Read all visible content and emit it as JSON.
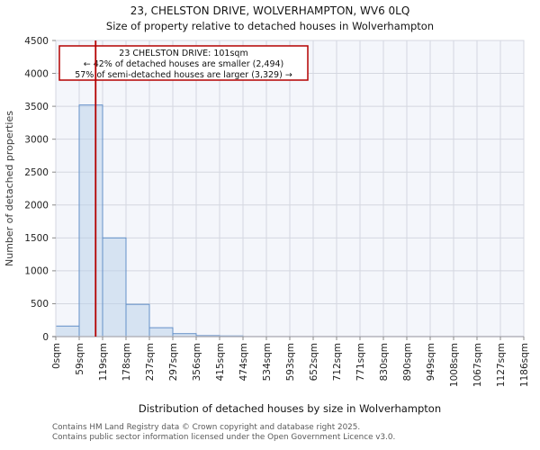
{
  "page": {
    "title": "23, CHELSTON DRIVE, WOLVERHAMPTON, WV6 0LQ",
    "subtitle": "Size of property relative to detached houses in Wolverhampton"
  },
  "chart_data": {
    "type": "bar",
    "title": "23, CHELSTON DRIVE, WOLVERHAMPTON, WV6 0LQ",
    "subtitle": "Size of property relative to detached houses in Wolverhampton",
    "xlabel": "Distribution of detached houses by size in Wolverhampton",
    "ylabel": "Number of detached properties",
    "categories": [
      "0sqm",
      "59sqm",
      "119sqm",
      "178sqm",
      "237sqm",
      "297sqm",
      "356sqm",
      "415sqm",
      "474sqm",
      "534sqm",
      "593sqm",
      "652sqm",
      "712sqm",
      "771sqm",
      "830sqm",
      "890sqm",
      "949sqm",
      "1008sqm",
      "1067sqm",
      "1127sqm",
      "1186sqm"
    ],
    "values": [
      160,
      3520,
      1500,
      490,
      135,
      45,
      15,
      10,
      0,
      0,
      0,
      0,
      0,
      0,
      0,
      0,
      0,
      0,
      0,
      0
    ],
    "ylim": [
      0,
      4500
    ],
    "yticks": [
      0,
      500,
      1000,
      1500,
      2000,
      2500,
      3000,
      3500,
      4000,
      4500
    ],
    "xlim_sqm": [
      0,
      1186
    ],
    "grid": true,
    "legend": "none",
    "marker": {
      "label": "23 CHELSTON DRIVE",
      "value_sqm": 101
    },
    "annotation": {
      "lines": [
        "23 CHELSTON DRIVE: 101sqm",
        "← 42% of detached houses are smaller (2,494)",
        "57% of semi-detached houses are larger (3,329) →"
      ]
    },
    "colors": {
      "bar_fill": "#b8cfe9",
      "bar_edge": "#6490c8",
      "marker_red": "#b40000",
      "plot_bg": "#f4f6fb",
      "grid": "#d4d7e0",
      "spine": "#b4b4bc",
      "tick": "#8a8a8a",
      "tick_label": "#222222",
      "axis_label": "#3a3a3a",
      "footer_text": "#595959"
    }
  },
  "footer": {
    "lines": [
      "Contains HM Land Registry data © Crown copyright and database right 2025.",
      "Contains public sector information licensed under the Open Government Licence v3.0."
    ]
  }
}
